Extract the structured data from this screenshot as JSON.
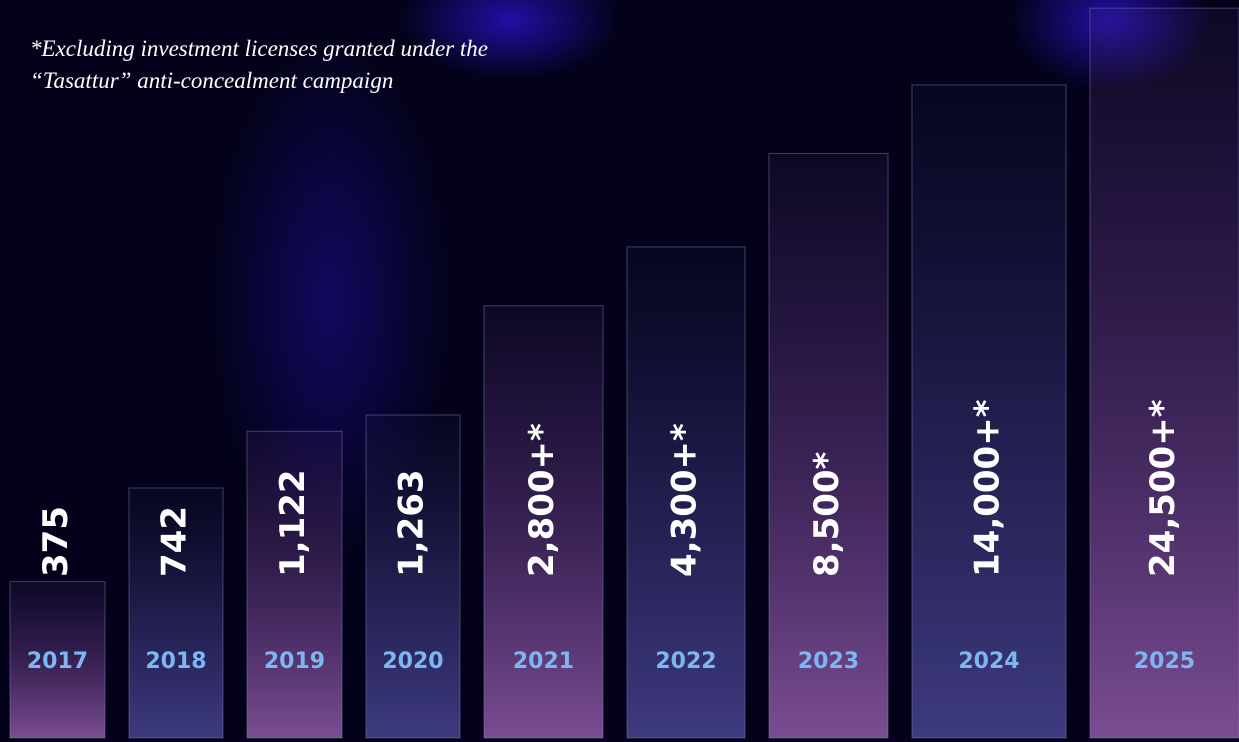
{
  "chart_data": {
    "type": "bar",
    "annotation": [
      "*Excluding investment licenses granted under the",
      "“Tasattur” anti-concealment campaign"
    ],
    "categories": [
      "2017",
      "2018",
      "2019",
      "2020",
      "2021",
      "2022",
      "2023",
      "2024",
      "2025"
    ],
    "values": [
      375,
      742,
      1122,
      1263,
      2800,
      4300,
      8500,
      14000,
      24500
    ],
    "value_labels": [
      "375",
      "742",
      "1,122",
      "1,263",
      "2,800+*",
      "4,300+*",
      "8,500*",
      "14,000+*",
      "24,500+*"
    ],
    "log_scale": true,
    "ylim": [
      120,
      26000
    ]
  }
}
